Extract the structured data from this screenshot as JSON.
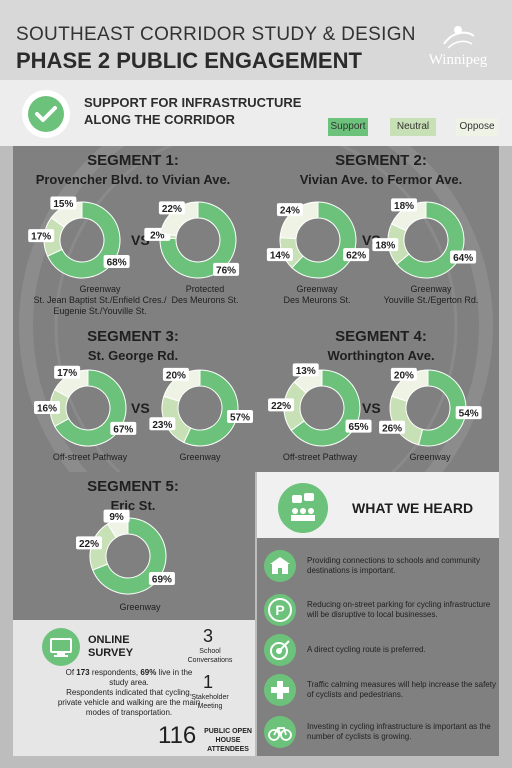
{
  "header": {
    "title_line1": "SOUTHEAST CORRIDOR STUDY & DESIGN",
    "title_line2": "PHASE 2 PUBLIC ENGAGEMENT",
    "logo_text": "Winnipeg"
  },
  "subheader": {
    "title": "SUPPORT FOR INFRASTRUCTURE ALONG THE CORRIDOR",
    "legend": [
      {
        "label": "Support",
        "color": "#6cc27a"
      },
      {
        "label": "Neutral",
        "color": "#c8e0b6"
      },
      {
        "label": "Oppose",
        "color": "#eef3e6"
      }
    ]
  },
  "segments": [
    {
      "title": "SEGMENT 1:",
      "subtitle": "Provencher Blvd. to Vivian Ave.",
      "charts": [
        {
          "support": 68,
          "neutral": 17,
          "oppose": 15,
          "label_lines": [
            "Greenway",
            "St. Jean Baptist St./Enfield Cres./",
            "Eugenie St./Youville St."
          ],
          "labels": [
            "68%",
            "17%",
            "15%"
          ]
        },
        {
          "support": 76,
          "neutral": 2,
          "oppose": 22,
          "label_lines": [
            "Protected",
            "Des Meurons St."
          ],
          "labels": [
            "76%",
            "2%",
            "22%"
          ]
        }
      ]
    },
    {
      "title": "SEGMENT 2:",
      "subtitle": "Vivian Ave. to Fermor Ave.",
      "charts": [
        {
          "support": 62,
          "neutral": 14,
          "oppose": 24,
          "label_lines": [
            "Greenway",
            "Des Meurons St."
          ],
          "labels": [
            "62%",
            "14%",
            "24%"
          ]
        },
        {
          "support": 64,
          "neutral": 18,
          "oppose": 18,
          "label_lines": [
            "Greenway",
            "Youville St./Egerton Rd."
          ],
          "labels": [
            "64%",
            "18%",
            "18%"
          ]
        }
      ]
    },
    {
      "title": "SEGMENT 3:",
      "subtitle": "St. George Rd.",
      "charts": [
        {
          "support": 67,
          "neutral": 16,
          "oppose": 17,
          "label_lines": [
            "Off-street Pathway"
          ],
          "labels": [
            "67%",
            "16%",
            "17%"
          ]
        },
        {
          "support": 57,
          "neutral": 23,
          "oppose": 20,
          "label_lines": [
            "Greenway"
          ],
          "labels": [
            "57%",
            "23%",
            "20%"
          ]
        }
      ]
    },
    {
      "title": "SEGMENT 4:",
      "subtitle": "Worthington Ave.",
      "charts": [
        {
          "support": 65,
          "neutral": 22,
          "oppose": 13,
          "label_lines": [
            "Off-street Pathway"
          ],
          "labels": [
            "65%",
            "22%",
            "13%"
          ]
        },
        {
          "support": 54,
          "neutral": 26,
          "oppose": 20,
          "label_lines": [
            "Greenway"
          ],
          "labels": [
            "54%",
            "26%",
            "20%"
          ]
        }
      ]
    },
    {
      "title": "SEGMENT 5:",
      "subtitle": "Eric St.",
      "charts": [
        {
          "support": 69,
          "neutral": 22,
          "oppose": 9,
          "label_lines": [
            "Greenway"
          ],
          "labels": [
            "69%",
            "22%",
            "9%"
          ]
        }
      ]
    }
  ],
  "vs_label": "VS",
  "survey": {
    "title_line1": "ONLINE",
    "title_line2": "SURVEY",
    "text_line1_pre": "Of ",
    "respondents": "173",
    "text_line1_mid": " respondents, ",
    "in_area_pct": "69%",
    "text_line1_post": " live in the",
    "text_line2": "study area.",
    "text_line3": "Respondents indicated that  cycling,",
    "text_line4": "private vehicle and walking are the main",
    "text_line5": "modes of transportation.",
    "stats": [
      {
        "number": "3",
        "label_lines": [
          "School",
          "Conversations"
        ]
      },
      {
        "number": "1",
        "label_lines": [
          "Stakeholder",
          "Meeting"
        ]
      },
      {
        "number": "116",
        "label_lines": [
          "PUBLIC OPEN",
          "HOUSE",
          "ATTENDEES"
        ]
      }
    ]
  },
  "what_we_heard": {
    "title": "WHAT WE HEARD",
    "items": [
      {
        "icon": "school-icon",
        "text_lines": [
          "Providing connections to schools and community",
          "destinations is important."
        ]
      },
      {
        "icon": "parking-icon",
        "text_lines": [
          "Reducing on-street parking for cycling infrastructure",
          "will be disruptive to local businesses."
        ]
      },
      {
        "icon": "target-icon",
        "text_lines": [
          "A direct cycling route is preferred."
        ]
      },
      {
        "icon": "plus-icon",
        "text_lines": [
          "Traffic calming measures will help increase the safety",
          "of cyclists and pedestrians."
        ]
      },
      {
        "icon": "bicycle-icon",
        "text_lines": [
          "Investing in cycling infrastructure is important as the",
          "number of cyclists is growing."
        ]
      }
    ]
  }
}
